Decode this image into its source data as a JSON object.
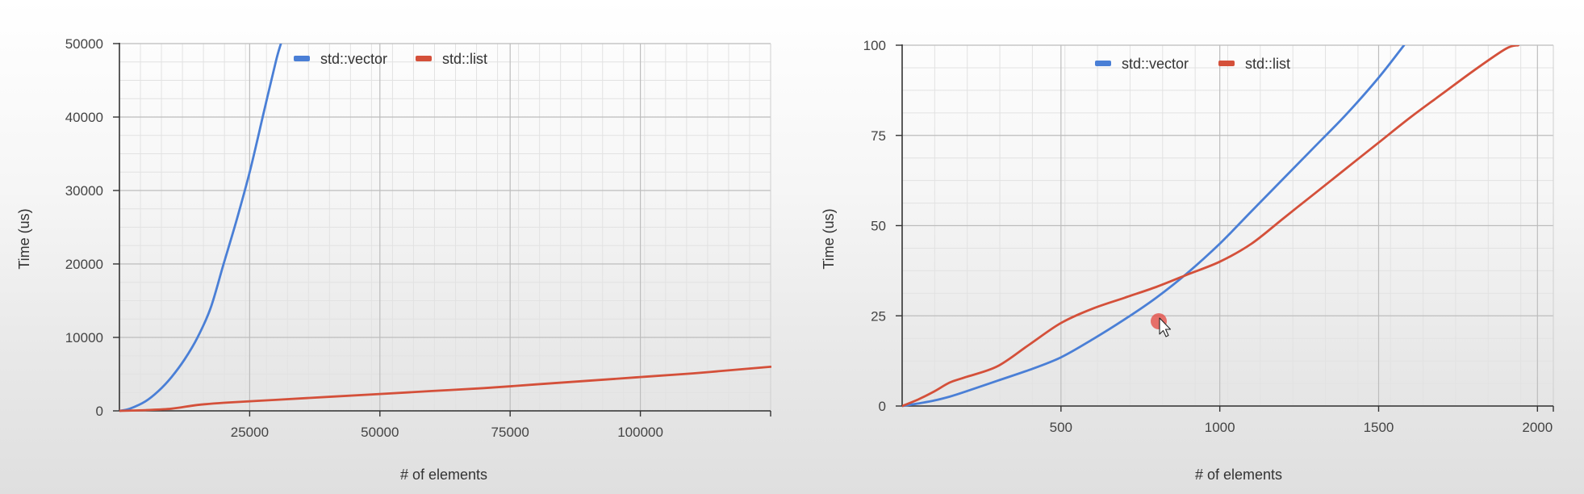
{
  "chart_data": [
    {
      "type": "line",
      "title": "",
      "xlabel": "# of elements",
      "ylabel": "Time (us)",
      "xlim": [
        0,
        125000
      ],
      "ylim": [
        0,
        50000
      ],
      "xticks": [
        25000,
        50000,
        75000,
        100000
      ],
      "xtick_labels": [
        "25000",
        "50000",
        "75000",
        "100000"
      ],
      "yticks": [
        0,
        10000,
        20000,
        30000,
        40000,
        50000
      ],
      "ytick_labels": [
        "0",
        "10000",
        "20000",
        "30000",
        "40000",
        "50000"
      ],
      "grid": true,
      "legend_position": "top-center",
      "series": [
        {
          "name": "std::vector",
          "color": "#4a7fd6",
          "x": [
            0,
            2000,
            5000,
            7500,
            10000,
            12500,
            15000,
            17500,
            20000,
            22500,
            25000,
            27500,
            30000,
            31000
          ],
          "y": [
            0,
            300,
            1300,
            2700,
            4600,
            7000,
            10000,
            14000,
            20000,
            26000,
            32500,
            40000,
            47500,
            50000
          ]
        },
        {
          "name": "std::list",
          "color": "#d4503a",
          "x": [
            0,
            5000,
            10000,
            15000,
            20000,
            30000,
            40000,
            50000,
            60000,
            70000,
            80000,
            90000,
            100000,
            110000,
            120000,
            125000
          ],
          "y": [
            0,
            100,
            300,
            800,
            1100,
            1500,
            1900,
            2300,
            2700,
            3100,
            3600,
            4100,
            4600,
            5100,
            5700,
            6000
          ]
        }
      ]
    },
    {
      "type": "line",
      "title": "",
      "xlabel": "# of elements",
      "ylabel": "Time (us)",
      "xlim": [
        0,
        2050
      ],
      "ylim": [
        0,
        100
      ],
      "xticks": [
        500,
        1000,
        1500,
        2000
      ],
      "xtick_labels": [
        "500",
        "1000",
        "1500",
        "2000"
      ],
      "yticks": [
        0,
        25,
        50,
        75,
        100
      ],
      "ytick_labels": [
        "0",
        "25",
        "50",
        "75",
        "100"
      ],
      "grid": true,
      "legend_position": "top-center",
      "series": [
        {
          "name": "std::vector",
          "color": "#4a7fd6",
          "x": [
            0,
            50,
            100,
            150,
            200,
            300,
            400,
            500,
            600,
            700,
            800,
            900,
            1000,
            1100,
            1200,
            1300,
            1400,
            1500,
            1580
          ],
          "y": [
            0,
            0.7,
            1.5,
            2.6,
            4,
            7,
            10,
            13.5,
            18.5,
            24,
            30,
            37,
            45,
            54,
            63,
            72,
            81,
            91,
            100
          ]
        },
        {
          "name": "std::list",
          "color": "#d4503a",
          "x": [
            0,
            50,
            100,
            150,
            200,
            300,
            400,
            500,
            600,
            700,
            800,
            900,
            1000,
            1100,
            1200,
            1300,
            1400,
            1500,
            1600,
            1700,
            1800,
            1900,
            1940
          ],
          "y": [
            0,
            1.8,
            4,
            6.5,
            8,
            11,
            17,
            23,
            27,
            30,
            33,
            36.5,
            40,
            45,
            52,
            59,
            66,
            73,
            80,
            86.5,
            93,
            99,
            100
          ]
        }
      ]
    }
  ]
}
